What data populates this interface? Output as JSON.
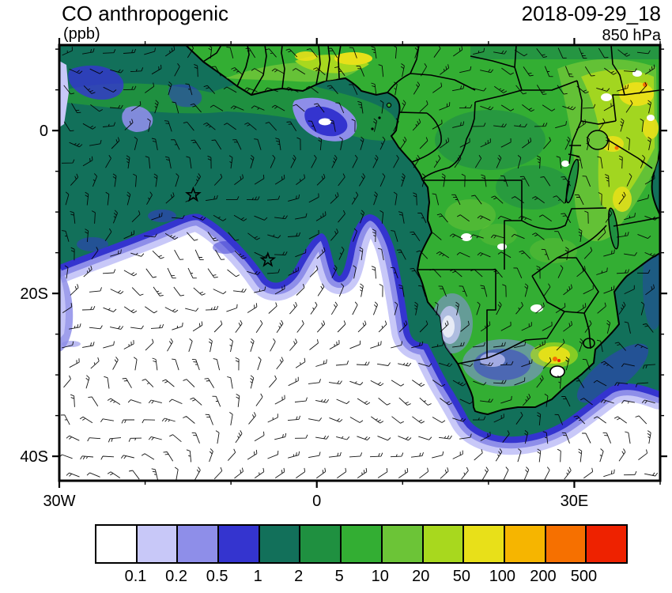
{
  "header": {
    "title": "CO anthropogenic",
    "units_label": "(ppb)",
    "datetime": "2018-09-29_18",
    "level": "850 hPa"
  },
  "chart_data": {
    "type": "heatmap",
    "title": "CO anthropogenic",
    "units": "ppb",
    "datetime": "2018-09-29_18",
    "pressure_level": "850 hPa",
    "projection": "cylindrical-equidistant",
    "region": "Africa and South Atlantic",
    "lon_range": [
      -30,
      40
    ],
    "lat_range": [
      -43,
      10.5
    ],
    "x_ticks": [
      {
        "lon": -30,
        "label": "30W"
      },
      {
        "lon": 0,
        "label": "0"
      },
      {
        "lon": 30,
        "label": "30E"
      }
    ],
    "y_ticks": [
      {
        "lat": 0,
        "label": "0"
      },
      {
        "lat": -20,
        "label": "20S"
      },
      {
        "lat": -40,
        "label": "40S"
      }
    ],
    "minor_tick_interval_deg": {
      "x": 10,
      "y": 5
    },
    "colorbar": {
      "levels": [
        "0.1",
        "0.2",
        "0.5",
        "1",
        "2",
        "5",
        "10",
        "20",
        "50",
        "100",
        "200",
        "500"
      ],
      "colors": [
        "#ffffff",
        "#c8c8f8",
        "#8e8ee9",
        "#3434cf",
        "#12705a",
        "#1f9040",
        "#33ae33",
        "#6cc437",
        "#a8d81e",
        "#e8e019",
        "#f6b500",
        "#f67000",
        "#ee2200"
      ],
      "position": "bottom"
    },
    "overlays": {
      "wind_barbs": true,
      "coastlines": true,
      "country_borders": true,
      "station_markers": [
        {
          "shape": "star",
          "lon": -14.4,
          "lat": -7.9
        },
        {
          "shape": "star",
          "lon": -5.7,
          "lat": -15.9
        }
      ]
    }
  }
}
